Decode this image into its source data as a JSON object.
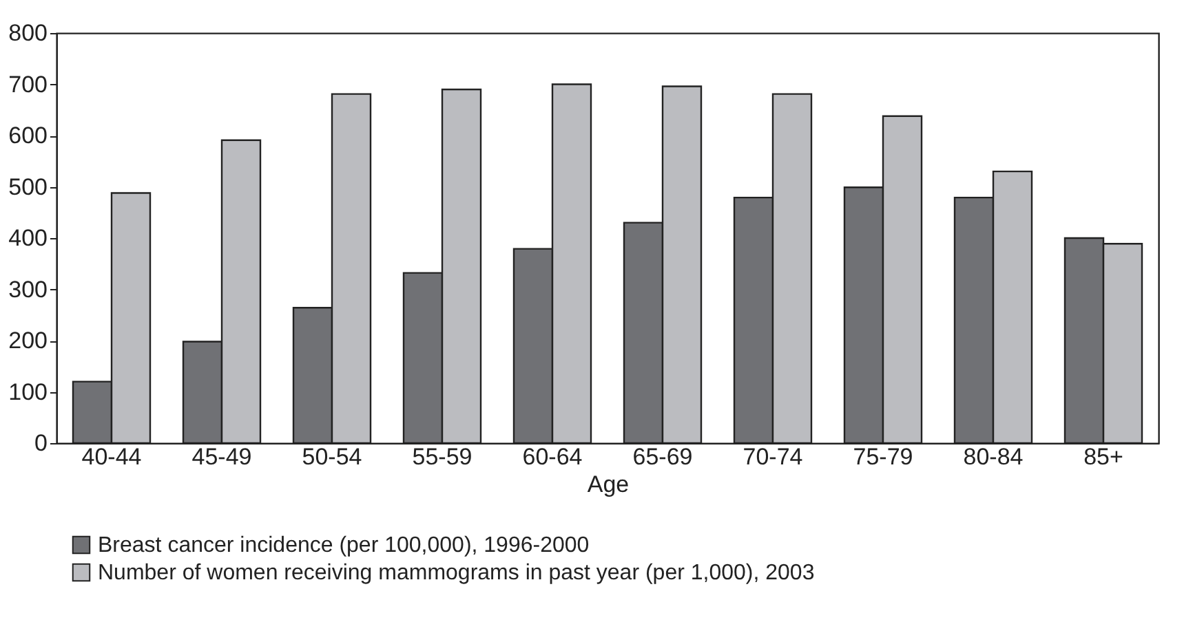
{
  "chart_data": {
    "type": "bar",
    "xlabel": "Age",
    "categories": [
      "40-44",
      "45-49",
      "50-54",
      "55-59",
      "60-64",
      "65-69",
      "70-74",
      "75-79",
      "80-84",
      "85+"
    ],
    "series": [
      {
        "name": "Breast cancer incidence (per 100,000), 1996-2000",
        "color": "#707175",
        "values": [
          120,
          198,
          264,
          332,
          379,
          430,
          479,
          499,
          479,
          400
        ]
      },
      {
        "name": "Number of women receiving mammograms in past year (per 1,000), 2003",
        "color": "#bbbcc0",
        "values": [
          488,
          591,
          681,
          690,
          700,
          696,
          681,
          638,
          530,
          389
        ]
      }
    ],
    "ylim": [
      0,
      800
    ],
    "yticks": [
      0,
      100,
      200,
      300,
      400,
      500,
      600,
      700,
      800
    ],
    "grid": false,
    "legend": "bottom"
  }
}
